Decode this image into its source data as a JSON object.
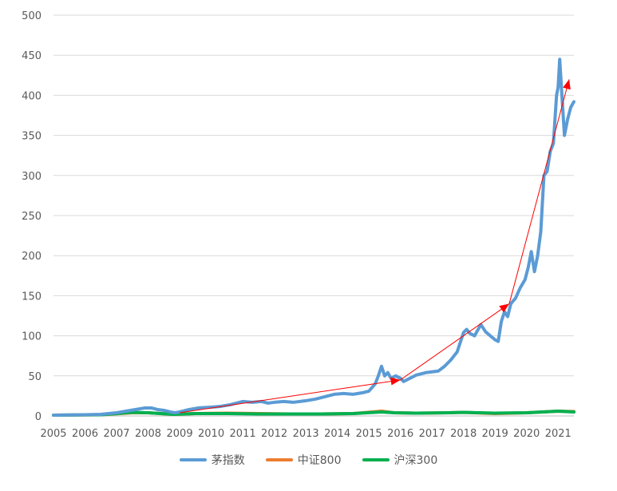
{
  "chart_data": {
    "type": "line",
    "title": "",
    "xlabel": "",
    "ylabel": "",
    "ylim": [
      0,
      500
    ],
    "xlim": [
      2005,
      2021.5
    ],
    "yticks": [
      0,
      50,
      100,
      150,
      200,
      250,
      300,
      350,
      400,
      450,
      500
    ],
    "xticks": [
      "2005",
      "2006",
      "2007",
      "2008",
      "2009",
      "2010",
      "2011",
      "2012",
      "2013",
      "2014",
      "2015",
      "2016",
      "2017",
      "2018",
      "2019",
      "2020",
      "2021"
    ],
    "grid": "horizontal",
    "legend_position": "bottom",
    "series": [
      {
        "name": "茅指数",
        "color": "#5B9BD5",
        "points": [
          [
            2005.0,
            1
          ],
          [
            2006.0,
            1.5
          ],
          [
            2006.5,
            2
          ],
          [
            2007.0,
            4
          ],
          [
            2007.3,
            6
          ],
          [
            2007.6,
            8
          ],
          [
            2007.9,
            10
          ],
          [
            2008.1,
            10
          ],
          [
            2008.3,
            8
          ],
          [
            2008.5,
            7
          ],
          [
            2008.7,
            5
          ],
          [
            2008.85,
            4
          ],
          [
            2009.0,
            5
          ],
          [
            2009.3,
            8
          ],
          [
            2009.6,
            10
          ],
          [
            2010.0,
            11
          ],
          [
            2010.3,
            12
          ],
          [
            2010.6,
            14
          ],
          [
            2010.9,
            17
          ],
          [
            2011.0,
            18
          ],
          [
            2011.3,
            17
          ],
          [
            2011.6,
            18
          ],
          [
            2011.8,
            16
          ],
          [
            2012.0,
            17
          ],
          [
            2012.3,
            18
          ],
          [
            2012.6,
            17
          ],
          [
            2013.0,
            19
          ],
          [
            2013.3,
            21
          ],
          [
            2013.6,
            24
          ],
          [
            2013.9,
            27
          ],
          [
            2014.2,
            28
          ],
          [
            2014.5,
            27
          ],
          [
            2014.8,
            29
          ],
          [
            2015.0,
            31
          ],
          [
            2015.2,
            40
          ],
          [
            2015.3,
            50
          ],
          [
            2015.4,
            62
          ],
          [
            2015.5,
            50
          ],
          [
            2015.6,
            54
          ],
          [
            2015.7,
            47
          ],
          [
            2015.85,
            50
          ],
          [
            2016.0,
            47
          ],
          [
            2016.1,
            43
          ],
          [
            2016.3,
            47
          ],
          [
            2016.5,
            51
          ],
          [
            2016.8,
            54
          ],
          [
            2017.0,
            55
          ],
          [
            2017.2,
            56
          ],
          [
            2017.4,
            62
          ],
          [
            2017.6,
            70
          ],
          [
            2017.8,
            80
          ],
          [
            2018.0,
            104
          ],
          [
            2018.1,
            108
          ],
          [
            2018.2,
            103
          ],
          [
            2018.35,
            100
          ],
          [
            2018.45,
            107
          ],
          [
            2018.55,
            114
          ],
          [
            2018.7,
            105
          ],
          [
            2018.85,
            100
          ],
          [
            2019.0,
            95
          ],
          [
            2019.1,
            93
          ],
          [
            2019.2,
            118
          ],
          [
            2019.3,
            130
          ],
          [
            2019.4,
            124
          ],
          [
            2019.5,
            140
          ],
          [
            2019.65,
            147
          ],
          [
            2019.8,
            160
          ],
          [
            2019.95,
            170
          ],
          [
            2020.05,
            185
          ],
          [
            2020.15,
            205
          ],
          [
            2020.25,
            180
          ],
          [
            2020.35,
            200
          ],
          [
            2020.45,
            230
          ],
          [
            2020.55,
            300
          ],
          [
            2020.65,
            305
          ],
          [
            2020.75,
            330
          ],
          [
            2020.85,
            340
          ],
          [
            2020.95,
            400
          ],
          [
            2021.0,
            410
          ],
          [
            2021.05,
            445
          ],
          [
            2021.12,
            400
          ],
          [
            2021.2,
            350
          ],
          [
            2021.3,
            370
          ],
          [
            2021.4,
            385
          ],
          [
            2021.5,
            392
          ]
        ]
      },
      {
        "name": "中证800",
        "color": "#ED7D31",
        "points": [
          [
            2005.0,
            1
          ],
          [
            2006.5,
            1.5
          ],
          [
            2007.5,
            4
          ],
          [
            2008.0,
            4
          ],
          [
            2008.8,
            2
          ],
          [
            2009.5,
            3
          ],
          [
            2010.5,
            3.5
          ],
          [
            2011.5,
            3
          ],
          [
            2012.5,
            2.5
          ],
          [
            2013.5,
            2.5
          ],
          [
            2014.5,
            3
          ],
          [
            2015.4,
            6
          ],
          [
            2015.8,
            4
          ],
          [
            2016.5,
            3.5
          ],
          [
            2017.5,
            4
          ],
          [
            2018.0,
            4.5
          ],
          [
            2019.0,
            3
          ],
          [
            2020.0,
            4
          ],
          [
            2021.0,
            6
          ],
          [
            2021.5,
            5.5
          ]
        ]
      },
      {
        "name": "沪深300",
        "color": "#00B050",
        "points": [
          [
            2005.0,
            1
          ],
          [
            2006.5,
            1.5
          ],
          [
            2007.5,
            4.5
          ],
          [
            2008.0,
            4
          ],
          [
            2008.8,
            2
          ],
          [
            2009.5,
            3
          ],
          [
            2010.5,
            3
          ],
          [
            2011.5,
            2.5
          ],
          [
            2012.5,
            2.5
          ],
          [
            2013.5,
            2.5
          ],
          [
            2014.5,
            3
          ],
          [
            2015.4,
            5
          ],
          [
            2015.8,
            4
          ],
          [
            2016.5,
            3.5
          ],
          [
            2017.5,
            4
          ],
          [
            2018.0,
            4.5
          ],
          [
            2019.0,
            3.5
          ],
          [
            2020.0,
            4
          ],
          [
            2021.0,
            6
          ],
          [
            2021.5,
            5
          ]
        ]
      }
    ],
    "annotations": {
      "arrow_color": "#FF0000",
      "arrows": [
        {
          "from": [
            2009.0,
            4
          ],
          "to": [
            2016.0,
            45
          ]
        },
        {
          "from": [
            2016.0,
            45
          ],
          "to": [
            2019.45,
            140
          ]
        },
        {
          "from": [
            2019.45,
            140
          ],
          "to": [
            2021.35,
            420
          ]
        }
      ]
    }
  }
}
